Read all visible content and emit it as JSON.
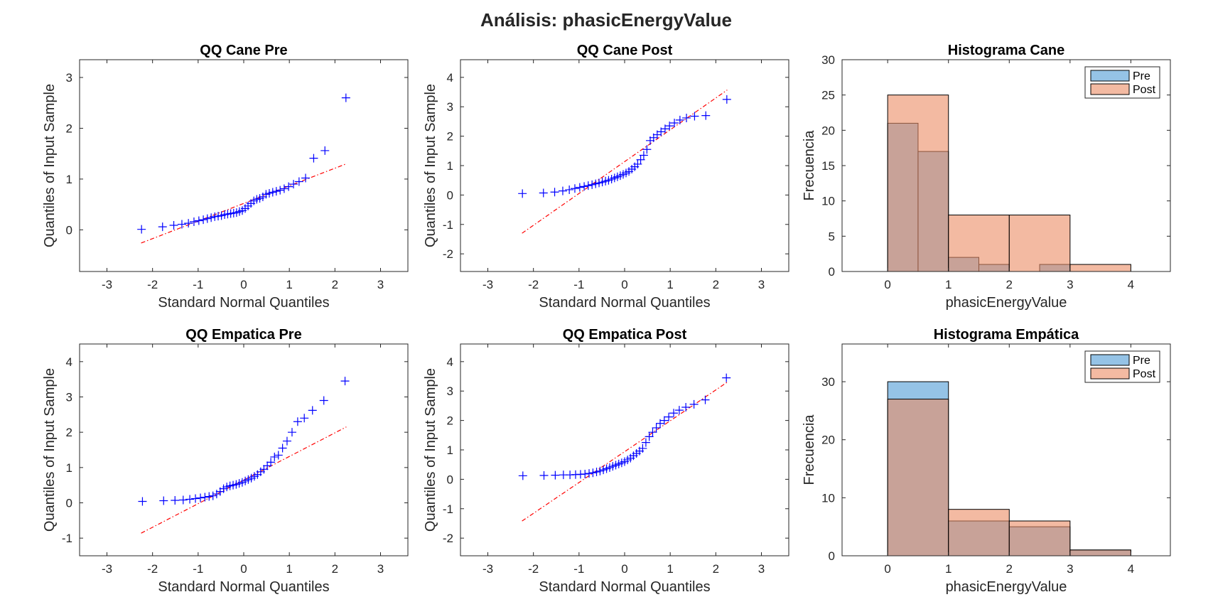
{
  "figure": {
    "title": "Análisis: phasicEnergyValue"
  },
  "chart_data": [
    {
      "type": "scatter",
      "title": "QQ Cane Pre",
      "xlabel": "Standard Normal Quantiles",
      "ylabel": "Quantiles of Input Sample",
      "xlim": [
        -3.6,
        3.6
      ],
      "ylim": [
        -0.82,
        3.35
      ],
      "xticks": [
        -3,
        -2,
        -1,
        0,
        1,
        2,
        3
      ],
      "yticks": [
        0,
        1,
        2,
        3
      ],
      "marker": "+",
      "marker_color": "#0000ff",
      "line_color": "#ff0000",
      "points_y": [
        0.01,
        0.06,
        0.09,
        0.11,
        0.13,
        0.16,
        0.18,
        0.2,
        0.22,
        0.24,
        0.26,
        0.27,
        0.28,
        0.3,
        0.31,
        0.32,
        0.33,
        0.34,
        0.36,
        0.38,
        0.42,
        0.47,
        0.52,
        0.57,
        0.6,
        0.62,
        0.65,
        0.7,
        0.72,
        0.74,
        0.76,
        0.78,
        0.81,
        0.85,
        0.9,
        0.95,
        1.02,
        1.41,
        1.56,
        2.6
      ],
      "ref_line": {
        "x": [
          -2.25,
          2.25
        ],
        "y": [
          -0.26,
          1.3
        ]
      }
    },
    {
      "type": "scatter",
      "title": "QQ Cane Post",
      "xlabel": "Standard Normal Quantiles",
      "ylabel": "Quantiles of Input Sample",
      "xlim": [
        -3.6,
        3.6
      ],
      "ylim": [
        -2.6,
        4.6
      ],
      "xticks": [
        -3,
        -2,
        -1,
        0,
        1,
        2,
        3
      ],
      "yticks": [
        -2,
        -1,
        0,
        1,
        2,
        3,
        4
      ],
      "marker": "+",
      "marker_color": "#0000ff",
      "line_color": "#ff0000",
      "points_y": [
        0.05,
        0.07,
        0.1,
        0.14,
        0.18,
        0.22,
        0.26,
        0.29,
        0.32,
        0.35,
        0.38,
        0.41,
        0.44,
        0.47,
        0.5,
        0.54,
        0.58,
        0.62,
        0.66,
        0.7,
        0.75,
        0.8,
        0.88,
        0.96,
        1.05,
        1.2,
        1.35,
        1.55,
        1.85,
        1.95,
        2.05,
        2.15,
        2.25,
        2.35,
        2.45,
        2.55,
        2.62,
        2.68,
        2.7,
        3.25
      ],
      "ref_line": {
        "x": [
          -2.25,
          2.25
        ],
        "y": [
          -1.3,
          3.57
        ]
      }
    },
    {
      "type": "bar",
      "title": "Histograma Cane",
      "xlabel": "phasicEnergyValue",
      "ylabel": "Frecuencia",
      "xlim": [
        -0.75,
        4.65
      ],
      "ylim": [
        0,
        30
      ],
      "xticks": [
        0,
        1,
        2,
        3,
        4
      ],
      "yticks": [
        0,
        5,
        10,
        15,
        20,
        25,
        30
      ],
      "legend_position": "top-right",
      "series": [
        {
          "name": "Pre",
          "color": "#4f9bd6",
          "bins": [
            [
              0,
              0.5,
              21
            ],
            [
              0.5,
              1,
              17
            ],
            [
              1,
              1.5,
              2
            ],
            [
              1.5,
              2,
              1
            ],
            [
              2.5,
              3,
              1
            ]
          ]
        },
        {
          "name": "Post",
          "color": "#eb8c64",
          "bins": [
            [
              0,
              1,
              25
            ],
            [
              1,
              2,
              8
            ],
            [
              2,
              3,
              8
            ],
            [
              3,
              4,
              1
            ]
          ]
        }
      ]
    },
    {
      "type": "scatter",
      "title": "QQ Empatica Pre",
      "xlabel": "Standard Normal Quantiles",
      "ylabel": "Quantiles of Input Sample",
      "xlim": [
        -3.6,
        3.6
      ],
      "ylim": [
        -1.5,
        4.5
      ],
      "xticks": [
        -3,
        -2,
        -1,
        0,
        1,
        2,
        3
      ],
      "yticks": [
        -1,
        0,
        1,
        2,
        3,
        4
      ],
      "marker": "+",
      "marker_color": "#0000ff",
      "line_color": "#ff0000",
      "points_y": [
        0.04,
        0.06,
        0.07,
        0.08,
        0.1,
        0.12,
        0.14,
        0.16,
        0.18,
        0.2,
        0.25,
        0.32,
        0.4,
        0.45,
        0.48,
        0.5,
        0.52,
        0.55,
        0.58,
        0.62,
        0.66,
        0.7,
        0.75,
        0.8,
        0.88,
        0.95,
        1.05,
        1.15,
        1.3,
        1.35,
        1.55,
        1.75,
        2.0,
        2.3,
        2.4,
        2.62,
        2.9,
        3.45
      ],
      "ref_line": {
        "x": [
          -2.25,
          2.25
        ],
        "y": [
          -0.86,
          2.15
        ]
      }
    },
    {
      "type": "scatter",
      "title": "QQ Empatica Post",
      "xlabel": "Standard Normal Quantiles",
      "ylabel": "Quantiles of Input Sample",
      "xlim": [
        -3.6,
        3.6
      ],
      "ylim": [
        -2.6,
        4.6
      ],
      "xticks": [
        -3,
        -2,
        -1,
        0,
        1,
        2,
        3
      ],
      "yticks": [
        -2,
        -1,
        0,
        1,
        2,
        3,
        4
      ],
      "marker": "+",
      "marker_color": "#0000ff",
      "line_color": "#ff0000",
      "points_y": [
        0.12,
        0.13,
        0.14,
        0.15,
        0.15,
        0.16,
        0.17,
        0.18,
        0.2,
        0.22,
        0.25,
        0.28,
        0.32,
        0.36,
        0.4,
        0.44,
        0.48,
        0.52,
        0.56,
        0.6,
        0.66,
        0.72,
        0.8,
        0.88,
        0.96,
        1.05,
        1.25,
        1.45,
        1.6,
        1.75,
        1.9,
        2.0,
        2.12,
        2.25,
        2.35,
        2.45,
        2.55,
        2.7,
        3.45
      ],
      "ref_line": {
        "x": [
          -2.25,
          2.25
        ],
        "y": [
          -1.42,
          3.3
        ]
      }
    },
    {
      "type": "bar",
      "title": "Histograma Empática",
      "xlabel": "phasicEnergyValue",
      "ylabel": "Frecuencia",
      "xlim": [
        -0.75,
        4.65
      ],
      "ylim": [
        0,
        36.5
      ],
      "xticks": [
        0,
        1,
        2,
        3,
        4
      ],
      "yticks": [
        0,
        10,
        20,
        30
      ],
      "legend_position": "top-right",
      "series": [
        {
          "name": "Pre",
          "color": "#4f9bd6",
          "bins": [
            [
              0,
              1,
              30
            ],
            [
              1,
              2,
              6
            ],
            [
              2,
              3,
              5
            ],
            [
              3,
              4,
              1
            ]
          ]
        },
        {
          "name": "Post",
          "color": "#eb8c64",
          "bins": [
            [
              0,
              1,
              27
            ],
            [
              1,
              2,
              8
            ],
            [
              2,
              3,
              6
            ],
            [
              3,
              4,
              1
            ]
          ]
        }
      ]
    }
  ]
}
